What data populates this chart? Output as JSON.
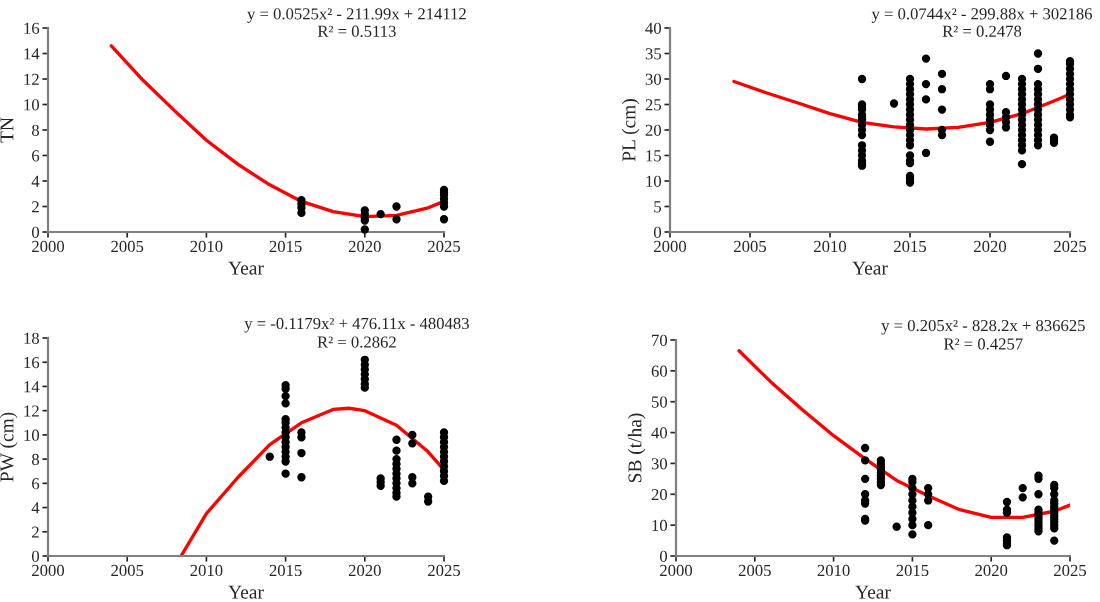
{
  "chart_data": [
    {
      "type": "scatter",
      "xlabel": "Year",
      "ylabel": "TN",
      "xlim": [
        2000,
        2025
      ],
      "xticks": [
        2000,
        2005,
        2010,
        2015,
        2020,
        2025
      ],
      "ylim": [
        0,
        16
      ],
      "yticks": [
        0,
        2,
        4,
        6,
        8,
        10,
        12,
        14,
        16
      ],
      "grid": false,
      "marker": "circle",
      "annotations": [
        "y = 0.0525x² - 211.99x + 214112",
        "R² = 0.5113"
      ],
      "series": [
        {
          "type": "scatter",
          "color": "#000000",
          "x": [
            2016,
            2016,
            2016,
            2016,
            2020,
            2020,
            2020,
            2020,
            2020,
            2021,
            2022,
            2022,
            2025,
            2025,
            2025,
            2025,
            2025,
            2025,
            2025
          ],
          "values": [
            2.5,
            2.2,
            1.9,
            1.5,
            1.7,
            1.4,
            1.1,
            0.9,
            0.2,
            1.4,
            2.0,
            1.0,
            3.3,
            3.1,
            2.9,
            2.6,
            2.3,
            2.0,
            1.0
          ]
        },
        {
          "type": "line",
          "color": "#ff0000",
          "marker": "none",
          "x": [
            2004,
            2006,
            2008,
            2010,
            2012,
            2014,
            2016,
            2018,
            2020,
            2022,
            2024,
            2025
          ],
          "values": [
            14.6,
            11.9,
            9.5,
            7.2,
            5.3,
            3.7,
            2.4,
            1.6,
            1.2,
            1.3,
            1.9,
            2.4
          ]
        }
      ]
    },
    {
      "type": "scatter",
      "xlabel": "Year",
      "ylabel": "PL (cm)",
      "xlim": [
        2000,
        2025
      ],
      "xticks": [
        2000,
        2005,
        2010,
        2015,
        2020,
        2025
      ],
      "ylim": [
        0,
        40
      ],
      "yticks": [
        0,
        5,
        10,
        15,
        20,
        25,
        30,
        35,
        40
      ],
      "grid": false,
      "marker": "circle",
      "annotations": [
        "y = 0.0744x² - 299.88x + 302186",
        "R² = 0.2478"
      ],
      "series": [
        {
          "type": "scatter",
          "color": "#000000",
          "x": [
            2012,
            2012,
            2012,
            2012,
            2012,
            2012,
            2012,
            2012,
            2012,
            2012,
            2012,
            2012,
            2012,
            2012,
            2012,
            2012,
            2014,
            2015,
            2015,
            2015,
            2015,
            2015,
            2015,
            2015,
            2015,
            2015,
            2015,
            2015,
            2015,
            2015,
            2015,
            2015,
            2015,
            2015,
            2015,
            2015,
            2015,
            2015,
            2016,
            2016,
            2016,
            2016,
            2017,
            2017,
            2017,
            2017,
            2017,
            2020,
            2020,
            2020,
            2020,
            2020,
            2020,
            2020,
            2020,
            2020,
            2021,
            2021,
            2021,
            2021,
            2021,
            2022,
            2022,
            2022,
            2022,
            2022,
            2022,
            2022,
            2022,
            2022,
            2022,
            2022,
            2022,
            2022,
            2022,
            2022,
            2022,
            2023,
            2023,
            2023,
            2023,
            2023,
            2023,
            2023,
            2023,
            2023,
            2023,
            2023,
            2023,
            2023,
            2023,
            2023,
            2024,
            2024,
            2024,
            2025,
            2025,
            2025,
            2025,
            2025,
            2025,
            2025,
            2025,
            2025,
            2025,
            2025,
            2025,
            2025
          ],
          "values": [
            30,
            25,
            24.5,
            24,
            23,
            22.5,
            22,
            21,
            20,
            19,
            17,
            16,
            15,
            14,
            13.5,
            13,
            25.2,
            30,
            29,
            28,
            27,
            26,
            25,
            24,
            23,
            22,
            21,
            20,
            19,
            18,
            17,
            15,
            14,
            13.5,
            11,
            10.5,
            10,
            9.7,
            34,
            29,
            26,
            15.5,
            31,
            28,
            24,
            20,
            19,
            29,
            28,
            25,
            24,
            23,
            22,
            21,
            20,
            17.7,
            30.6,
            23.5,
            22.5,
            21.5,
            20.5,
            30,
            29,
            28,
            27,
            26,
            25,
            24,
            23,
            22,
            21,
            20,
            19,
            18,
            17,
            16,
            13.3,
            35,
            32,
            29,
            28,
            27,
            26,
            25,
            24,
            23,
            22,
            21,
            20,
            19,
            18,
            17,
            18.5,
            18,
            17.5,
            33.5,
            33,
            32,
            31,
            30,
            29,
            28,
            27,
            26,
            25,
            24,
            23,
            22.5
          ]
        },
        {
          "type": "line",
          "color": "#ff0000",
          "marker": "none",
          "x": [
            2004,
            2006,
            2008,
            2010,
            2012,
            2014,
            2016,
            2018,
            2020,
            2022,
            2024,
            2025
          ],
          "values": [
            29.5,
            27.3,
            25.3,
            23.2,
            21.5,
            20.6,
            20.2,
            20.5,
            21.5,
            23.2,
            25.7,
            27
          ]
        }
      ]
    },
    {
      "type": "scatter",
      "xlabel": "Year",
      "ylabel": "PW (cm)",
      "xlim": [
        2000,
        2025
      ],
      "xticks": [
        2000,
        2005,
        2010,
        2015,
        2020,
        2025
      ],
      "ylim": [
        0,
        18
      ],
      "yticks": [
        0,
        2,
        4,
        6,
        8,
        10,
        12,
        14,
        16,
        18
      ],
      "grid": false,
      "marker": "circle",
      "annotations": [
        "y = -0.1179x² + 476.11x - 480483",
        "R² = 0.2862"
      ],
      "series": [
        {
          "type": "scatter",
          "color": "#000000",
          "x": [
            2014,
            2015,
            2015,
            2015,
            2015,
            2015,
            2015,
            2015,
            2015,
            2015,
            2015,
            2015,
            2015,
            2015,
            2015,
            2015,
            2016,
            2016,
            2016,
            2016,
            2020,
            2020,
            2020,
            2020,
            2020,
            2020,
            2020,
            2021,
            2021,
            2021,
            2022,
            2022,
            2022,
            2022,
            2022,
            2022,
            2022,
            2022,
            2022,
            2022,
            2022,
            2023,
            2023,
            2023,
            2023,
            2024,
            2024,
            2025,
            2025,
            2025,
            2025,
            2025,
            2025,
            2025,
            2025,
            2025,
            2025,
            2025
          ],
          "values": [
            8.2,
            14.1,
            13.8,
            13.2,
            12.6,
            11.3,
            11,
            10.6,
            10.2,
            9.8,
            9.4,
            9,
            8.6,
            8.2,
            7.8,
            6.8,
            10.2,
            9.8,
            8.5,
            6.5,
            16.2,
            15.8,
            15.4,
            15,
            14.6,
            14.2,
            13.9,
            6.4,
            6.1,
            5.8,
            9.6,
            8.7,
            8,
            7.6,
            7.2,
            6.8,
            6.4,
            6,
            5.6,
            5.2,
            4.9,
            10,
            9.3,
            6.5,
            6.0,
            4.9,
            4.5,
            10.2,
            9.8,
            9.4,
            9,
            8.6,
            8.2,
            7.8,
            7.4,
            7,
            6.6,
            6.2
          ]
        },
        {
          "type": "line",
          "color": "#ff0000",
          "marker": "none",
          "x": [
            2008.4,
            2010,
            2012,
            2014,
            2016,
            2018,
            2019,
            2020,
            2022,
            2024,
            2025
          ],
          "values": [
            0,
            3.5,
            6.5,
            9.2,
            11,
            12.1,
            12.2,
            12.0,
            10.8,
            8.6,
            7.1
          ]
        }
      ]
    },
    {
      "type": "scatter",
      "xlabel": "Year",
      "ylabel": "SB (t/ha)",
      "xlim": [
        2000,
        2025
      ],
      "xticks": [
        2000,
        2005,
        2010,
        2015,
        2020,
        2025
      ],
      "ylim": [
        0,
        70
      ],
      "yticks": [
        0,
        10,
        20,
        30,
        40,
        50,
        60,
        70
      ],
      "grid": false,
      "marker": "circle",
      "annotations": [
        "y = 0.205x² - 828.2x + 836625",
        "R² = 0.4257"
      ],
      "series": [
        {
          "type": "scatter",
          "color": "#000000",
          "x": [
            2012,
            2012,
            2012,
            2012,
            2012,
            2012,
            2012,
            2012,
            2013,
            2013,
            2013,
            2013,
            2013,
            2013,
            2013,
            2013,
            2013,
            2014,
            2015,
            2015,
            2015,
            2015,
            2015,
            2015,
            2015,
            2015,
            2015,
            2015,
            2016,
            2016,
            2016,
            2016,
            2021,
            2021,
            2021,
            2021,
            2021,
            2021,
            2021,
            2022,
            2022,
            2023,
            2023,
            2023,
            2023,
            2023,
            2023,
            2023,
            2023,
            2023,
            2023,
            2023,
            2024,
            2024,
            2024,
            2024,
            2024,
            2024,
            2024,
            2024,
            2024,
            2024,
            2024,
            2024,
            2024,
            2024
          ],
          "values": [
            35,
            31,
            25,
            20,
            18,
            17,
            12,
            11.5,
            31,
            30,
            29,
            28,
            27,
            26,
            25,
            24,
            23,
            9.5,
            25,
            24,
            22,
            20,
            18,
            16,
            14,
            12,
            10,
            7,
            22,
            20,
            18,
            10,
            17.5,
            15,
            14,
            6,
            5,
            4,
            3.5,
            22,
            19,
            26,
            25,
            20,
            15,
            14,
            13,
            12,
            11,
            10,
            9,
            8,
            23,
            22,
            20,
            18,
            17,
            16,
            15,
            14,
            13,
            12,
            11,
            10,
            9,
            5
          ]
        },
        {
          "type": "line",
          "color": "#ff0000",
          "marker": "none",
          "x": [
            2004,
            2006,
            2008,
            2010,
            2012,
            2014,
            2016,
            2018,
            2020,
            2022,
            2024,
            2025
          ],
          "values": [
            66.5,
            56.5,
            47.5,
            39,
            31.5,
            24.5,
            19.5,
            15,
            12.5,
            12.5,
            14.5,
            16.5
          ]
        }
      ]
    }
  ]
}
